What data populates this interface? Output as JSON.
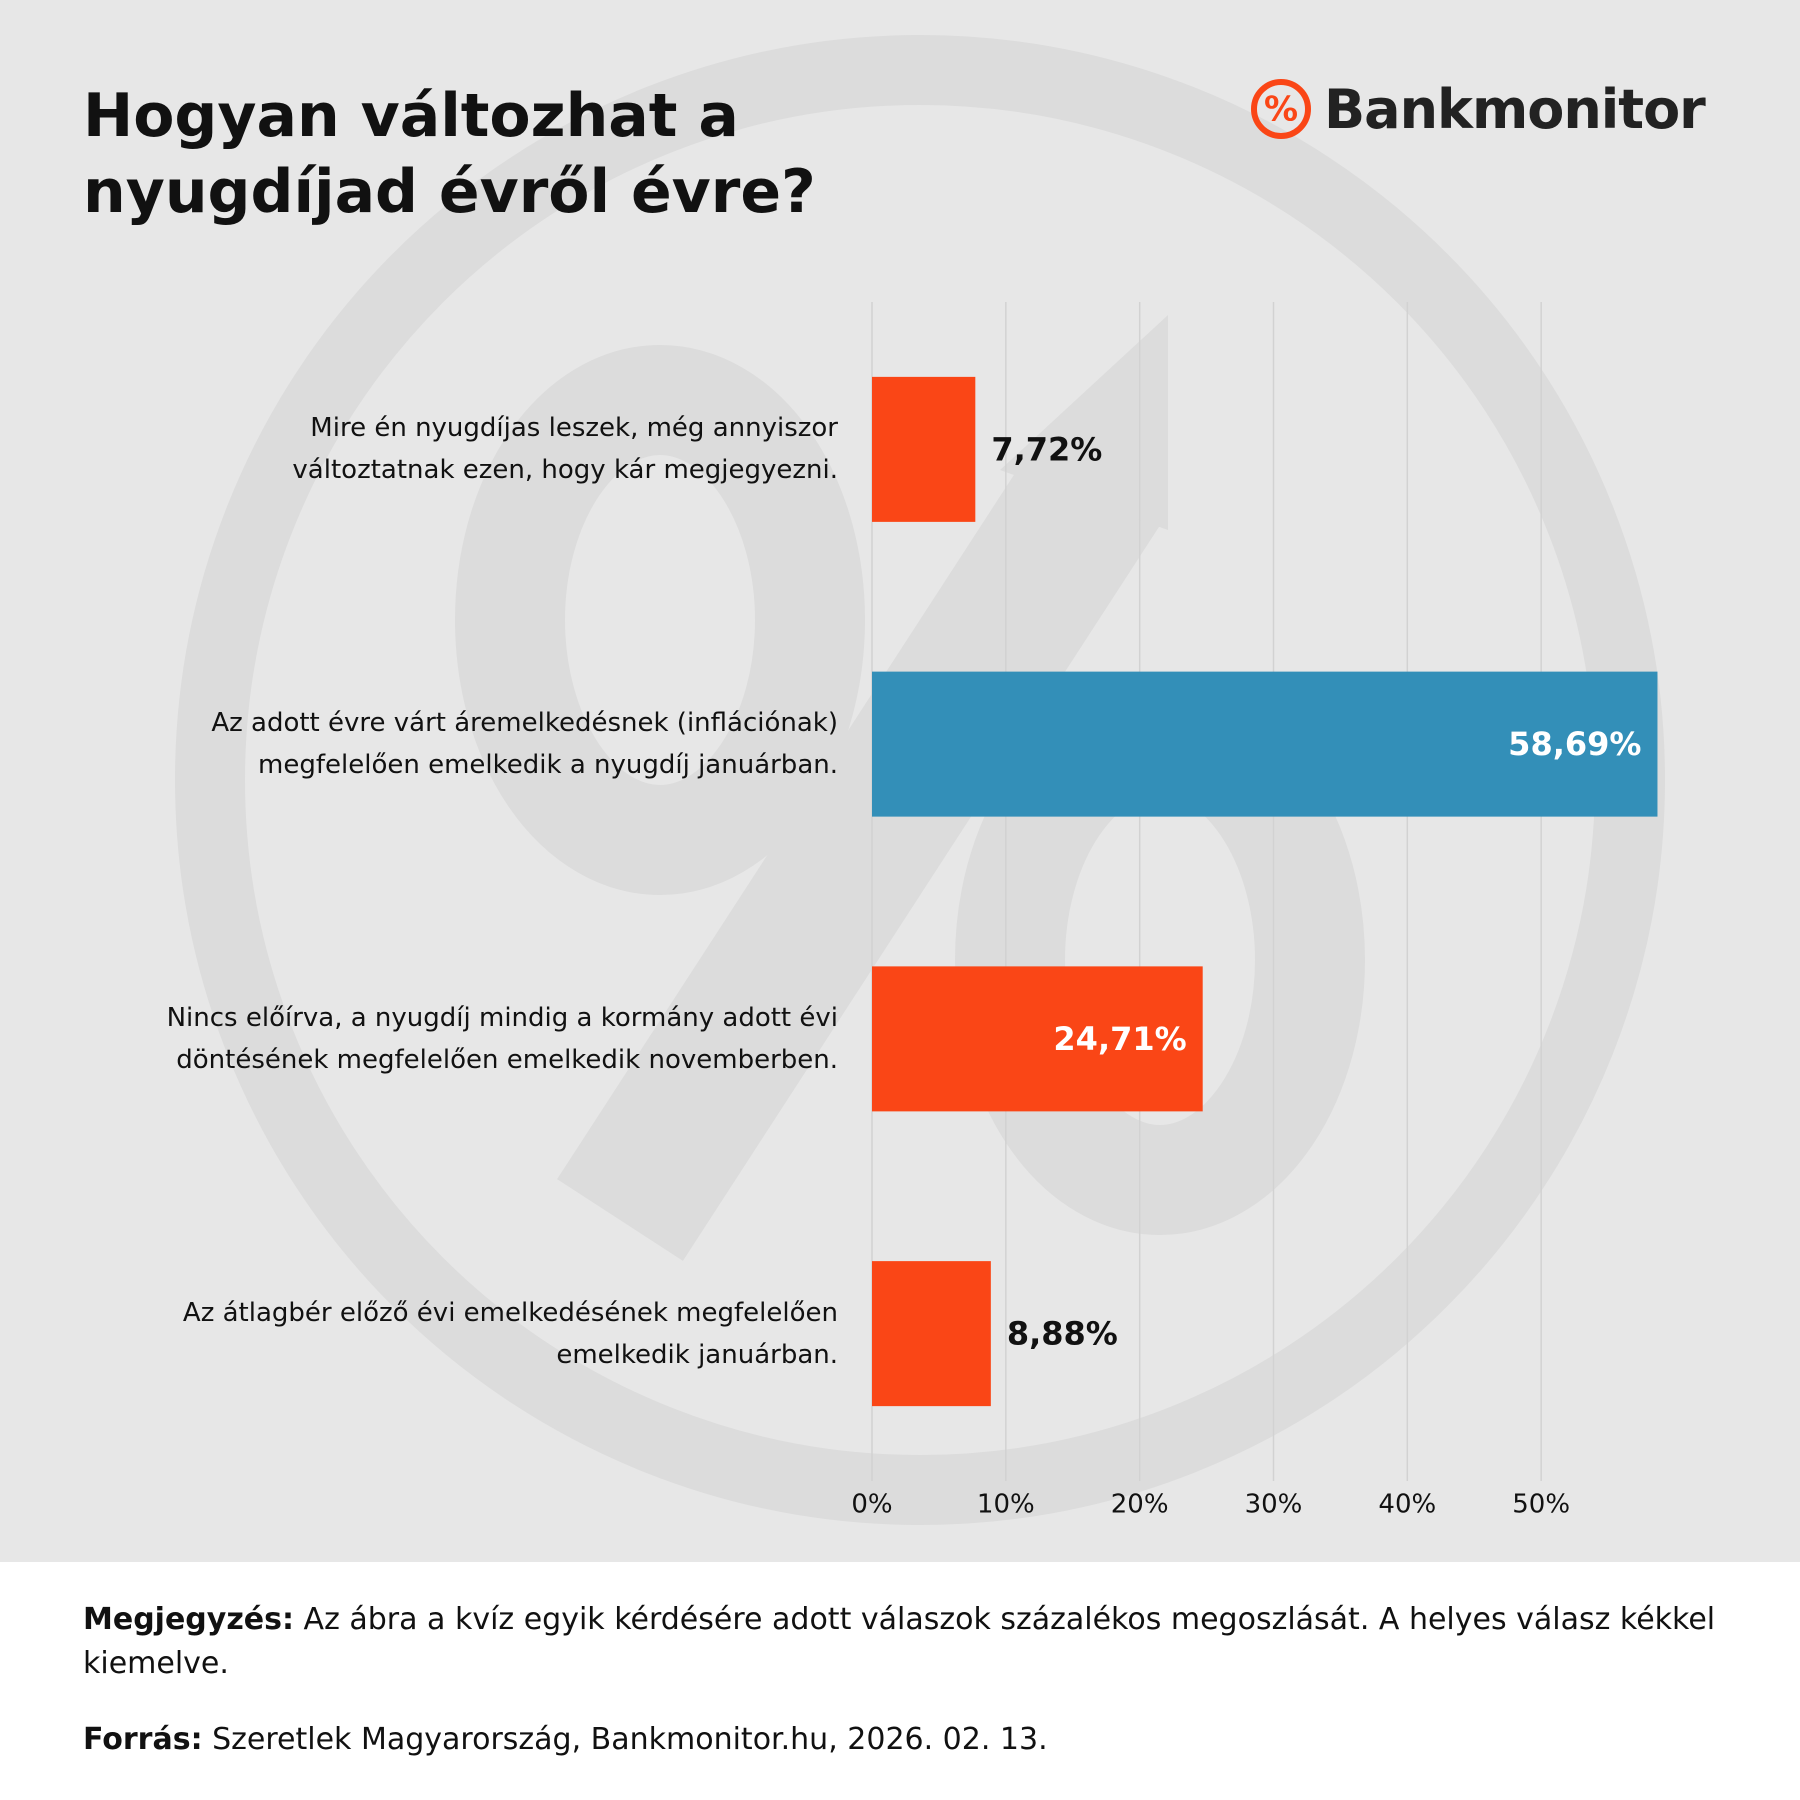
{
  "title": "Hogyan változhat a nyugdíjad évről évre?",
  "logo": {
    "text": "Bankmonitor"
  },
  "chart_data": {
    "type": "bar",
    "orientation": "horizontal",
    "categories": [
      "Mire én nyugdíjas leszek, még annyiszor\nváltoztatnak ezen, hogy kár megjegyezni.",
      "Az adott évre várt áremelkedésnek (inflációnak)\nmegfelelően emelkedik a nyugdíj januárban.",
      "Nincs előírva, a nyugdíj mindig a kormány adott évi\ndöntésének megfelelően emelkedik novemberben.",
      "Az átlagbér előző évi emelkedésének megfelelően\nemelkedik januárban."
    ],
    "values": [
      7.72,
      58.69,
      24.71,
      8.88
    ],
    "value_labels": [
      "7,72%",
      "58,69%",
      "24,71%",
      "8,88%"
    ],
    "colors": [
      "#fa4616",
      "#338fb8",
      "#fa4616",
      "#fa4616"
    ],
    "xlim": [
      0,
      60
    ],
    "xticks": [
      {
        "value": 0,
        "label": "0%"
      },
      {
        "value": 10,
        "label": "10%"
      },
      {
        "value": 20,
        "label": "20%"
      },
      {
        "value": 30,
        "label": "30%"
      },
      {
        "value": 40,
        "label": "40%"
      },
      {
        "value": 50,
        "label": "50%"
      }
    ],
    "grid": true
  },
  "note": {
    "label": "Megjegyzés:",
    "text": "Az ábra a kvíz egyik kérdésére adott válaszok százalékos megoszlását. A helyes válasz kékkel kiemelve."
  },
  "source": {
    "label": "Forrás:",
    "text": "Szeretlek Magyarország, Bankmonitor.hu, 2026. 02. 13."
  }
}
